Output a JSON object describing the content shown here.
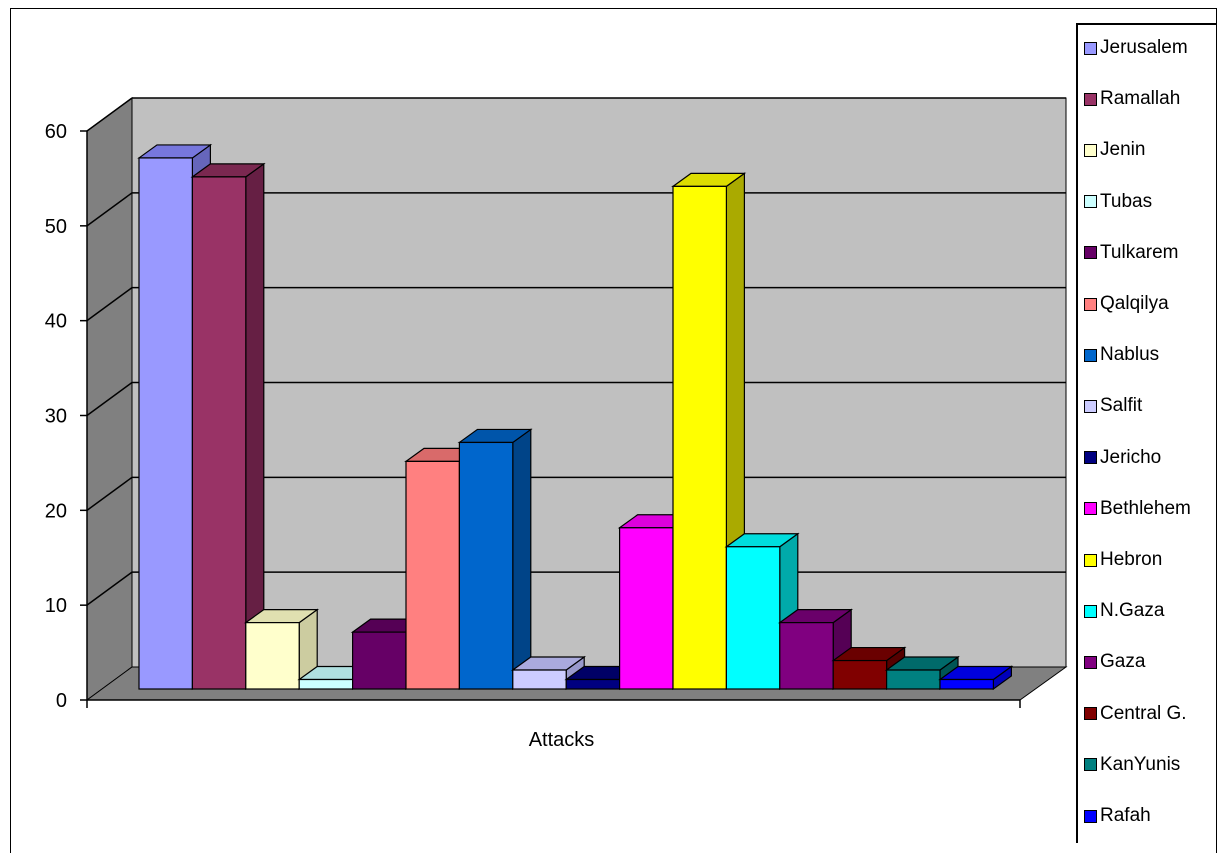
{
  "chart_data": {
    "type": "bar",
    "title": "",
    "xlabel": "",
    "ylabel": "",
    "categories": [
      "Attacks"
    ],
    "ylim": [
      0,
      60
    ],
    "yticks": [
      0,
      10,
      20,
      30,
      40,
      50,
      60
    ],
    "grid": true,
    "three_d": true,
    "legend_position": "right",
    "series": [
      {
        "name": "Jerusalem",
        "values": [
          56
        ],
        "color": "#9999ff",
        "top": "#7777dd",
        "side": "#6666bb"
      },
      {
        "name": "Ramallah",
        "values": [
          54
        ],
        "color": "#993366",
        "top": "#7a2850",
        "side": "#661f44"
      },
      {
        "name": "Jenin",
        "values": [
          7
        ],
        "color": "#ffffcc",
        "top": "#e0e0b0",
        "side": "#cccca0"
      },
      {
        "name": "Tubas",
        "values": [
          1
        ],
        "color": "#ccffff",
        "top": "#b0e0e0",
        "side": "#a0cccc"
      },
      {
        "name": "Tulkarem",
        "values": [
          6
        ],
        "color": "#660066",
        "top": "#550055",
        "side": "#440044"
      },
      {
        "name": "Qalqilya",
        "values": [
          24
        ],
        "color": "#ff8080",
        "top": "#d96a6a",
        "side": "#c05e5e"
      },
      {
        "name": "Nablus",
        "values": [
          26
        ],
        "color": "#0066cc",
        "top": "#0055aa",
        "side": "#004488"
      },
      {
        "name": "Salfit",
        "values": [
          2
        ],
        "color": "#ccccff",
        "top": "#aaaadd",
        "side": "#9999cc"
      },
      {
        "name": "Jericho",
        "values": [
          1
        ],
        "color": "#000080",
        "top": "#000066",
        "side": "#000055"
      },
      {
        "name": "Bethlehem",
        "values": [
          17
        ],
        "color": "#ff00ff",
        "top": "#dd00dd",
        "side": "#bb00bb"
      },
      {
        "name": "Hebron",
        "values": [
          53
        ],
        "color": "#ffff00",
        "top": "#dddd00",
        "side": "#aaaa00"
      },
      {
        "name": "N.Gaza",
        "values": [
          15
        ],
        "color": "#00ffff",
        "top": "#00dddd",
        "side": "#00aaaa"
      },
      {
        "name": "Gaza",
        "values": [
          7
        ],
        "color": "#800080",
        "top": "#6a006a",
        "side": "#550055"
      },
      {
        "name": "Central G.",
        "values": [
          3
        ],
        "color": "#800000",
        "top": "#6a0000",
        "side": "#550000"
      },
      {
        "name": "KanYunis",
        "values": [
          2
        ],
        "color": "#008080",
        "top": "#006a6a",
        "side": "#005555"
      },
      {
        "name": "Rafah",
        "values": [
          1
        ],
        "color": "#0000ff",
        "top": "#0000dd",
        "side": "#0000bb"
      }
    ]
  }
}
